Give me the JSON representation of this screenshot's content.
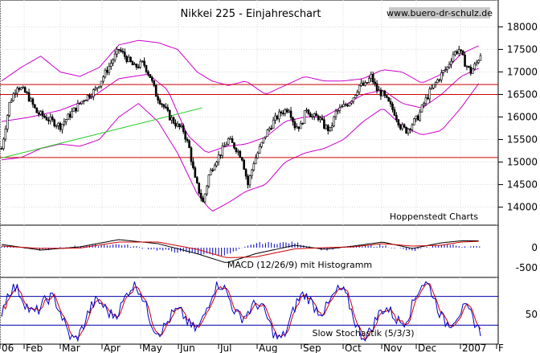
{
  "chart_data": [
    {
      "type": "candlestick",
      "title": "Nikkei 225 - Einjahreschart",
      "source": "www.buero-dr-schulz.de",
      "credit": "Hoppenstedt Charts",
      "ylim": [
        13600,
        18150
      ],
      "y_ticks": [
        14000,
        14500,
        15000,
        15500,
        16000,
        16500,
        17000,
        17500,
        18000
      ],
      "x_ticks": [
        "06",
        "Feb",
        "Mar",
        "Apr",
        "May",
        "Jun",
        "Jul",
        "Aug",
        "Sep",
        "Oct",
        "Nov",
        "Dec",
        "2007",
        "F"
      ],
      "horizontal_levels": [
        16720,
        16500,
        15100
      ],
      "trendline": {
        "from": [
          0,
          15090
        ],
        "to": [
          205,
          16200
        ]
      },
      "close_anchors": [
        [
          0,
          15300
        ],
        [
          8,
          16300
        ],
        [
          16,
          16700
        ],
        [
          26,
          16500
        ],
        [
          36,
          16100
        ],
        [
          48,
          15950
        ],
        [
          60,
          15800
        ],
        [
          72,
          16100
        ],
        [
          84,
          16400
        ],
        [
          96,
          16600
        ],
        [
          104,
          16900
        ],
        [
          112,
          17200
        ],
        [
          120,
          17500
        ],
        [
          128,
          17300
        ],
        [
          136,
          17100
        ],
        [
          145,
          17200
        ],
        [
          152,
          16900
        ],
        [
          158,
          16500
        ],
        [
          164,
          16300
        ],
        [
          172,
          16000
        ],
        [
          180,
          15800
        ],
        [
          186,
          15700
        ],
        [
          192,
          15300
        ],
        [
          198,
          14600
        ],
        [
          206,
          14100
        ],
        [
          212,
          14700
        ],
        [
          218,
          15000
        ],
        [
          224,
          15200
        ],
        [
          232,
          15500
        ],
        [
          240,
          15300
        ],
        [
          246,
          15100
        ],
        [
          252,
          14500
        ],
        [
          258,
          15000
        ],
        [
          264,
          15300
        ],
        [
          270,
          15600
        ],
        [
          278,
          15900
        ],
        [
          286,
          16100
        ],
        [
          294,
          16200
        ],
        [
          300,
          15800
        ],
        [
          306,
          15800
        ],
        [
          312,
          16200
        ],
        [
          318,
          16000
        ],
        [
          324,
          16000
        ],
        [
          330,
          15800
        ],
        [
          336,
          15700
        ],
        [
          342,
          16100
        ],
        [
          348,
          16200
        ],
        [
          354,
          16300
        ],
        [
          360,
          16450
        ],
        [
          366,
          16700
        ],
        [
          372,
          16700
        ],
        [
          378,
          16900
        ],
        [
          384,
          16600
        ],
        [
          390,
          16500
        ],
        [
          396,
          16300
        ],
        [
          402,
          16100
        ],
        [
          408,
          15800
        ],
        [
          414,
          15700
        ],
        [
          420,
          15850
        ],
        [
          426,
          16000
        ],
        [
          432,
          16300
        ],
        [
          438,
          16550
        ],
        [
          444,
          16750
        ],
        [
          450,
          16950
        ],
        [
          456,
          17100
        ],
        [
          462,
          17400
        ],
        [
          468,
          17500
        ],
        [
          474,
          17200
        ],
        [
          480,
          17000
        ],
        [
          486,
          17200
        ],
        [
          490,
          17400
        ]
      ],
      "upper_band_anchors": [
        [
          0,
          16800
        ],
        [
          20,
          17100
        ],
        [
          40,
          17350
        ],
        [
          60,
          17000
        ],
        [
          80,
          16900
        ],
        [
          100,
          17100
        ],
        [
          120,
          17600
        ],
        [
          140,
          17700
        ],
        [
          160,
          17650
        ],
        [
          180,
          17500
        ],
        [
          200,
          17000
        ],
        [
          215,
          16800
        ],
        [
          232,
          16700
        ],
        [
          250,
          16800
        ],
        [
          270,
          16500
        ],
        [
          290,
          16700
        ],
        [
          310,
          16900
        ],
        [
          330,
          16800
        ],
        [
          350,
          16800
        ],
        [
          370,
          16850
        ],
        [
          390,
          17050
        ],
        [
          410,
          17000
        ],
        [
          430,
          16750
        ],
        [
          450,
          16950
        ],
        [
          470,
          17400
        ],
        [
          490,
          17600
        ]
      ],
      "lower_band_anchors": [
        [
          0,
          15050
        ],
        [
          20,
          15100
        ],
        [
          40,
          15300
        ],
        [
          60,
          15400
        ],
        [
          80,
          15350
        ],
        [
          100,
          15500
        ],
        [
          120,
          16000
        ],
        [
          140,
          16300
        ],
        [
          160,
          15900
        ],
        [
          180,
          15200
        ],
        [
          200,
          14300
        ],
        [
          215,
          13900
        ],
        [
          232,
          14100
        ],
        [
          250,
          14350
        ],
        [
          270,
          14500
        ],
        [
          290,
          15000
        ],
        [
          310,
          15200
        ],
        [
          330,
          15300
        ],
        [
          350,
          15500
        ],
        [
          370,
          15900
        ],
        [
          390,
          16200
        ],
        [
          410,
          15800
        ],
        [
          430,
          15600
        ],
        [
          450,
          15700
        ],
        [
          470,
          16200
        ],
        [
          490,
          16800
        ]
      ],
      "moving_average_anchors": [
        [
          0,
          15900
        ],
        [
          30,
          16000
        ],
        [
          60,
          16150
        ],
        [
          90,
          16400
        ],
        [
          120,
          16850
        ],
        [
          150,
          16950
        ],
        [
          170,
          16600
        ],
        [
          190,
          15600
        ],
        [
          210,
          15200
        ],
        [
          230,
          15350
        ],
        [
          250,
          15400
        ],
        [
          270,
          15550
        ],
        [
          290,
          15900
        ],
        [
          310,
          16000
        ],
        [
          330,
          16000
        ],
        [
          350,
          16250
        ],
        [
          370,
          16500
        ],
        [
          390,
          16600
        ],
        [
          410,
          16300
        ],
        [
          430,
          16200
        ],
        [
          450,
          16500
        ],
        [
          470,
          16900
        ],
        [
          490,
          17100
        ]
      ]
    },
    {
      "type": "macd",
      "label": "MACD (12/26/9) mit Histogramm",
      "y_ticks": [
        0,
        -500
      ],
      "macd_anchors": [
        [
          0,
          80
        ],
        [
          40,
          -60
        ],
        [
          80,
          20
        ],
        [
          120,
          200
        ],
        [
          160,
          100
        ],
        [
          200,
          -150
        ],
        [
          230,
          -380
        ],
        [
          260,
          -150
        ],
        [
          300,
          60
        ],
        [
          330,
          -40
        ],
        [
          360,
          40
        ],
        [
          390,
          140
        ],
        [
          420,
          -20
        ],
        [
          450,
          120
        ],
        [
          470,
          170
        ],
        [
          490,
          170
        ]
      ],
      "signal_anchors": [
        [
          0,
          40
        ],
        [
          40,
          -20
        ],
        [
          80,
          -10
        ],
        [
          120,
          140
        ],
        [
          160,
          140
        ],
        [
          200,
          -40
        ],
        [
          230,
          -250
        ],
        [
          260,
          -230
        ],
        [
          300,
          -30
        ],
        [
          330,
          0
        ],
        [
          360,
          20
        ],
        [
          390,
          100
        ],
        [
          420,
          40
        ],
        [
          450,
          60
        ],
        [
          470,
          140
        ],
        [
          490,
          160
        ]
      ]
    },
    {
      "type": "stochastic",
      "label": "Slow Stochastik (5/3/3)",
      "y_ticks": [
        50
      ],
      "levels": [
        80,
        20
      ],
      "ylim": [
        0,
        100
      ]
    }
  ]
}
